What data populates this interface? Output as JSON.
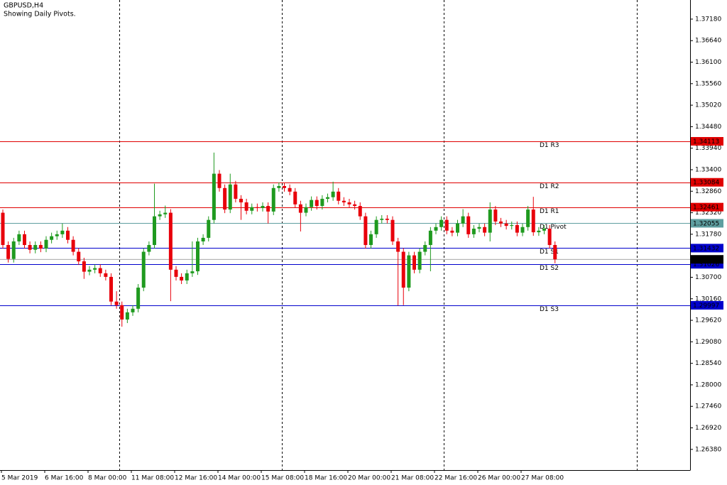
{
  "chart_data": {
    "type": "candlestick",
    "title": "GBPUSD,H4",
    "subtitle": "Showing Daily Pivots.",
    "up_color": "#1f9a1f",
    "down_color": "#e8000b",
    "ylim": [
      1.2586,
      1.3766
    ],
    "yticks": [
      {
        "value": 1.3718,
        "label": "1.37180"
      },
      {
        "value": 1.3664,
        "label": "1.36640"
      },
      {
        "value": 1.361,
        "label": "1.36100"
      },
      {
        "value": 1.3556,
        "label": "1.35560"
      },
      {
        "value": 1.3502,
        "label": "1.35020"
      },
      {
        "value": 1.3448,
        "label": "1.34480"
      },
      {
        "value": 1.3394,
        "label": "1.33940"
      },
      {
        "value": 1.334,
        "label": "1.33400"
      },
      {
        "value": 1.3286,
        "label": "1.32860"
      },
      {
        "value": 1.3232,
        "label": "1.32320"
      },
      {
        "value": 1.3178,
        "label": "1.31780"
      },
      {
        "value": 1.307,
        "label": "1.30700"
      },
      {
        "value": 1.3016,
        "label": "1.30160"
      },
      {
        "value": 1.2962,
        "label": "1.29620"
      },
      {
        "value": 1.2908,
        "label": "1.29080"
      },
      {
        "value": 1.2854,
        "label": "1.28540"
      },
      {
        "value": 1.28,
        "label": "1.28000"
      },
      {
        "value": 1.2746,
        "label": "1.27460"
      },
      {
        "value": 1.2692,
        "label": "1.26920"
      },
      {
        "value": 1.2638,
        "label": "1.26380"
      }
    ],
    "grid": false,
    "categories": [
      "5 Mar 2019",
      null,
      null,
      null,
      null,
      null,
      null,
      null,
      "6 Mar 16:00",
      null,
      null,
      null,
      null,
      null,
      null,
      null,
      "8 Mar 00:00",
      null,
      null,
      null,
      null,
      null,
      null,
      null,
      "11 Mar 08:00",
      null,
      null,
      null,
      null,
      null,
      null,
      null,
      "12 Mar 16:00",
      null,
      null,
      null,
      null,
      null,
      null,
      null,
      "14 Mar 00:00",
      null,
      null,
      null,
      null,
      null,
      null,
      null,
      "15 Mar 08:00",
      null,
      null,
      null,
      null,
      null,
      null,
      null,
      "18 Mar 16:00",
      null,
      null,
      null,
      null,
      null,
      null,
      null,
      "20 Mar 00:00",
      null,
      null,
      null,
      null,
      null,
      null,
      null,
      "21 Mar 08:00",
      null,
      null,
      null,
      null,
      null,
      null,
      null,
      "22 Mar 16:00",
      null,
      null,
      null,
      null,
      null,
      null,
      null,
      "26 Mar 00:00",
      null,
      null,
      null,
      null,
      null,
      null,
      null,
      "27 Mar 08:00",
      null,
      null,
      null,
      null,
      null,
      null
    ],
    "candles": [
      [
        1.3232,
        1.324,
        1.3142,
        1.3151
      ],
      [
        1.3151,
        1.316,
        1.3107,
        1.3116
      ],
      [
        1.3116,
        1.3169,
        1.3107,
        1.316
      ],
      [
        1.316,
        1.3187,
        1.3151,
        1.3178
      ],
      [
        1.3178,
        1.3187,
        1.3142,
        1.3151
      ],
      [
        1.3151,
        1.316,
        1.313,
        1.3139
      ],
      [
        1.3139,
        1.316,
        1.313,
        1.3151
      ],
      [
        1.3151,
        1.316,
        1.3133,
        1.3142
      ],
      [
        1.3142,
        1.3173,
        1.3133,
        1.3164
      ],
      [
        1.3164,
        1.3182,
        1.3155,
        1.3173
      ],
      [
        1.3173,
        1.3187,
        1.3164,
        1.3178
      ],
      [
        1.3178,
        1.3205,
        1.3169,
        1.3187
      ],
      [
        1.3187,
        1.3196,
        1.3155,
        1.3164
      ],
      [
        1.3164,
        1.3173,
        1.3125,
        1.3134
      ],
      [
        1.3134,
        1.3143,
        1.3101,
        1.311
      ],
      [
        1.311,
        1.3119,
        1.3066,
        1.3084
      ],
      [
        1.3084,
        1.3098,
        1.3075,
        1.3089
      ],
      [
        1.3089,
        1.3102,
        1.308,
        1.3093
      ],
      [
        1.3093,
        1.3102,
        1.3071,
        1.308
      ],
      [
        1.308,
        1.3089,
        1.3062,
        1.3071
      ],
      [
        1.3071,
        1.308,
        1.3,
        1.3009
      ],
      [
        1.3009,
        1.3035,
        1.2991,
        1.3
      ],
      [
        1.3,
        1.3009,
        1.2946,
        1.2964
      ],
      [
        1.2964,
        1.2991,
        1.2955,
        1.2982
      ],
      [
        1.2982,
        1.3,
        1.2973,
        1.2991
      ],
      [
        1.2991,
        1.3053,
        1.2982,
        1.3044
      ],
      [
        1.3044,
        1.3143,
        1.3035,
        1.3134
      ],
      [
        1.3134,
        1.316,
        1.3125,
        1.3151
      ],
      [
        1.3151,
        1.3305,
        1.3142,
        1.3223
      ],
      [
        1.3223,
        1.3237,
        1.3214,
        1.3228
      ],
      [
        1.3228,
        1.325,
        1.3219,
        1.3232
      ],
      [
        1.3232,
        1.3241,
        1.301,
        1.3089
      ],
      [
        1.3089,
        1.3098,
        1.3062,
        1.3071
      ],
      [
        1.3071,
        1.308,
        1.3053,
        1.3062
      ],
      [
        1.3062,
        1.3089,
        1.3053,
        1.308
      ],
      [
        1.308,
        1.316,
        1.3071,
        1.3085
      ],
      [
        1.3085,
        1.3169,
        1.3076,
        1.316
      ],
      [
        1.316,
        1.3178,
        1.3151,
        1.3169
      ],
      [
        1.3169,
        1.3223,
        1.316,
        1.3214
      ],
      [
        1.3214,
        1.3383,
        1.3205,
        1.333
      ],
      [
        1.333,
        1.3339,
        1.3285,
        1.3294
      ],
      [
        1.3294,
        1.3303,
        1.3231,
        1.324
      ],
      [
        1.324,
        1.333,
        1.3231,
        1.3303
      ],
      [
        1.3303,
        1.3312,
        1.3258,
        1.3267
      ],
      [
        1.3267,
        1.3276,
        1.3214,
        1.3258
      ],
      [
        1.3258,
        1.3267,
        1.3228,
        1.3237
      ],
      [
        1.3237,
        1.3255,
        1.3228,
        1.3246
      ],
      [
        1.3246,
        1.3255,
        1.3235,
        1.3244
      ],
      [
        1.3244,
        1.3258,
        1.3235,
        1.3249
      ],
      [
        1.3249,
        1.3258,
        1.3205,
        1.3235
      ],
      [
        1.3235,
        1.3303,
        1.3226,
        1.3294
      ],
      [
        1.3294,
        1.3308,
        1.3285,
        1.3299
      ],
      [
        1.3299,
        1.3308,
        1.3285,
        1.3294
      ],
      [
        1.3294,
        1.3303,
        1.3276,
        1.3285
      ],
      [
        1.3285,
        1.3294,
        1.3244,
        1.3253
      ],
      [
        1.3253,
        1.3262,
        1.3185,
        1.3232
      ],
      [
        1.3232,
        1.3255,
        1.3223,
        1.3246
      ],
      [
        1.3246,
        1.3273,
        1.3237,
        1.3264
      ],
      [
        1.3264,
        1.3273,
        1.324,
        1.3249
      ],
      [
        1.3249,
        1.3276,
        1.324,
        1.3267
      ],
      [
        1.3267,
        1.328,
        1.3258,
        1.3271
      ],
      [
        1.3271,
        1.331,
        1.3262,
        1.3285
      ],
      [
        1.3285,
        1.3294,
        1.3253,
        1.3262
      ],
      [
        1.3262,
        1.3271,
        1.3249,
        1.3258
      ],
      [
        1.3258,
        1.3267,
        1.3244,
        1.3253
      ],
      [
        1.3253,
        1.3262,
        1.324,
        1.3249
      ],
      [
        1.3249,
        1.3258,
        1.3214,
        1.3223
      ],
      [
        1.3223,
        1.3232,
        1.3142,
        1.3151
      ],
      [
        1.3151,
        1.3187,
        1.3142,
        1.3178
      ],
      [
        1.3178,
        1.3223,
        1.3169,
        1.3214
      ],
      [
        1.3214,
        1.3226,
        1.3205,
        1.3217
      ],
      [
        1.3217,
        1.3226,
        1.3205,
        1.3214
      ],
      [
        1.3214,
        1.3223,
        1.3151,
        1.316
      ],
      [
        1.316,
        1.3169,
        1.2999,
        1.3134
      ],
      [
        1.3134,
        1.3143,
        1.3,
        1.3044
      ],
      [
        1.3044,
        1.3134,
        1.3035,
        1.3125
      ],
      [
        1.3125,
        1.3134,
        1.308,
        1.3089
      ],
      [
        1.3089,
        1.3143,
        1.308,
        1.3134
      ],
      [
        1.3134,
        1.316,
        1.3125,
        1.3151
      ],
      [
        1.3151,
        1.3196,
        1.3085,
        1.3187
      ],
      [
        1.3187,
        1.3205,
        1.3178,
        1.3196
      ],
      [
        1.3196,
        1.3223,
        1.3187,
        1.3214
      ],
      [
        1.3214,
        1.3223,
        1.3178,
        1.3187
      ],
      [
        1.3187,
        1.3196,
        1.3173,
        1.3182
      ],
      [
        1.3182,
        1.3214,
        1.3173,
        1.3205
      ],
      [
        1.3205,
        1.3241,
        1.3196,
        1.3223
      ],
      [
        1.3223,
        1.3232,
        1.3169,
        1.3178
      ],
      [
        1.3178,
        1.3201,
        1.3169,
        1.3192
      ],
      [
        1.3192,
        1.3205,
        1.3183,
        1.3196
      ],
      [
        1.3196,
        1.3205,
        1.3173,
        1.3182
      ],
      [
        1.3182,
        1.3258,
        1.316,
        1.324
      ],
      [
        1.324,
        1.3249,
        1.3201,
        1.321
      ],
      [
        1.321,
        1.3219,
        1.3196,
        1.3205
      ],
      [
        1.3205,
        1.3214,
        1.319,
        1.3199
      ],
      [
        1.3199,
        1.321,
        1.319,
        1.3201
      ],
      [
        1.3201,
        1.321,
        1.3173,
        1.3182
      ],
      [
        1.3182,
        1.3205,
        1.3173,
        1.3196
      ],
      [
        1.3196,
        1.3249,
        1.3187,
        1.324
      ],
      [
        1.324,
        1.3272,
        1.3174,
        1.3183
      ],
      [
        1.3183,
        1.3196,
        1.3174,
        1.3187
      ],
      [
        1.3187,
        1.3201,
        1.3178,
        1.3192
      ],
      [
        1.3192,
        1.3201,
        1.3142,
        1.3151
      ],
      [
        1.3151,
        1.316,
        1.3105,
        1.3115
      ]
    ],
    "levels": [
      {
        "label": "D1 R3",
        "value": 1.34113,
        "color": "#e00000"
      },
      {
        "label": "D1 R2",
        "value": 1.33084,
        "color": "#e00000"
      },
      {
        "label": "D1 R1",
        "value": 1.32461,
        "color": "#e00000"
      },
      {
        "label": "D1 Pivot",
        "value": 1.32055,
        "color": "#5f9ea0"
      },
      {
        "label": "D1 S1",
        "value": 1.31432,
        "color": "#0000cc"
      },
      {
        "label": "D1 S2",
        "value": 1.31026,
        "color": "#0000cc"
      },
      {
        "label": "D1 S3",
        "value": 1.29997,
        "color": "#0000cc"
      }
    ],
    "current_price": {
      "value": 1.3115,
      "label": "1.31150"
    }
  }
}
